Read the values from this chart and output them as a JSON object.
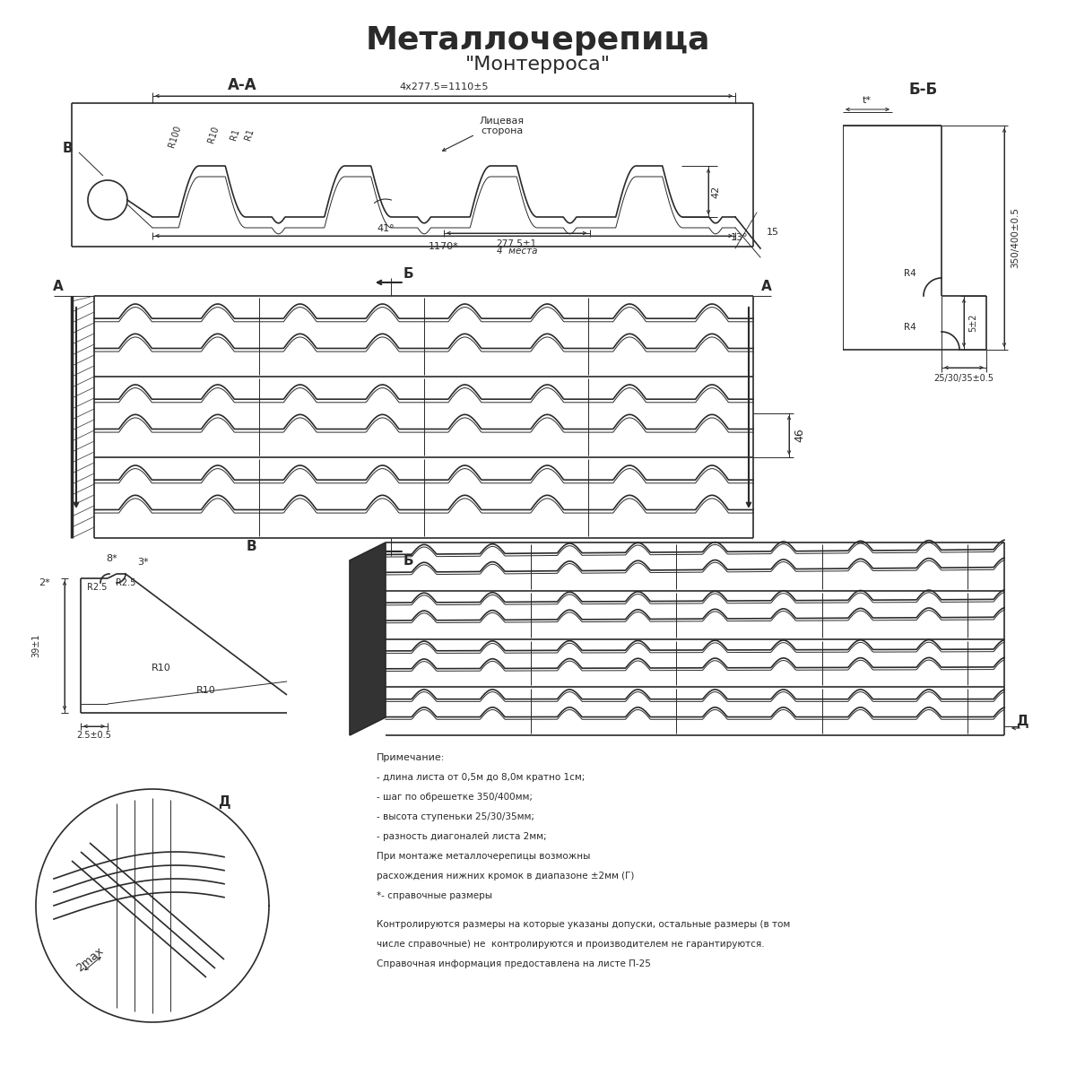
{
  "title": "Металлочерепица",
  "subtitle": "\"Монтерроса\"",
  "bg_color": "#ffffff",
  "line_color": "#2a2a2a",
  "section_AA": "А-А",
  "section_BB": "Б-Б",
  "label_A": "А",
  "label_B": "Б",
  "label_V": "В",
  "label_D": "Д",
  "dim_4x2775": "4x277.5=1110±5",
  "dim_2775": "277.5±1",
  "dim_4mesta": "4  места",
  "dim_1170": "1170*",
  "dim_42": "42",
  "dim_15": "15",
  "dim_41": "41°",
  "dim_13": "13°",
  "dim_R100": "R100",
  "dim_R10": "R10",
  "dim_R1a": "R1",
  "dim_R1b": "R1",
  "label_face": "Лицевая\nсторона",
  "dim_46": "46",
  "dim_t": "t*",
  "dim_350400": "350/400±0.5",
  "dim_253035": "25/30/35±0.5",
  "dim_R4a": "R4",
  "dim_R4b": "R4",
  "dim_52": "5±2",
  "dim_2star": "2*",
  "dim_8star": "8*",
  "dim_3star": "3*",
  "dim_R25a": "R2.5",
  "dim_R25b": "R2.5",
  "dim_R10b": "R10",
  "dim_R10c": "R10",
  "dim_391": "39±1",
  "dim_2505": "2.5±0.5",
  "dim_2max": "2max",
  "note_title": "Примечание:",
  "notes": [
    "- длина листа от 0,5м до 8,0м кратно 1см;",
    "- шаг по обрешетке 350/400мм;",
    "- высота ступеньки 25/30/35мм;",
    "- разность диагоналей листа 2мм;",
    "При монтаже металлочерепицы возможны",
    "расхождения нижних кромок в диапазоне ±2мм (Г)",
    "*- справочные размеры",
    "Контролируются размеры на которые указаны допуски, остальные размеры (в том",
    "числе справочные) не  контролируются и производителем не гарантируются.",
    "Справочная информация предоставлена на листе П-25"
  ]
}
